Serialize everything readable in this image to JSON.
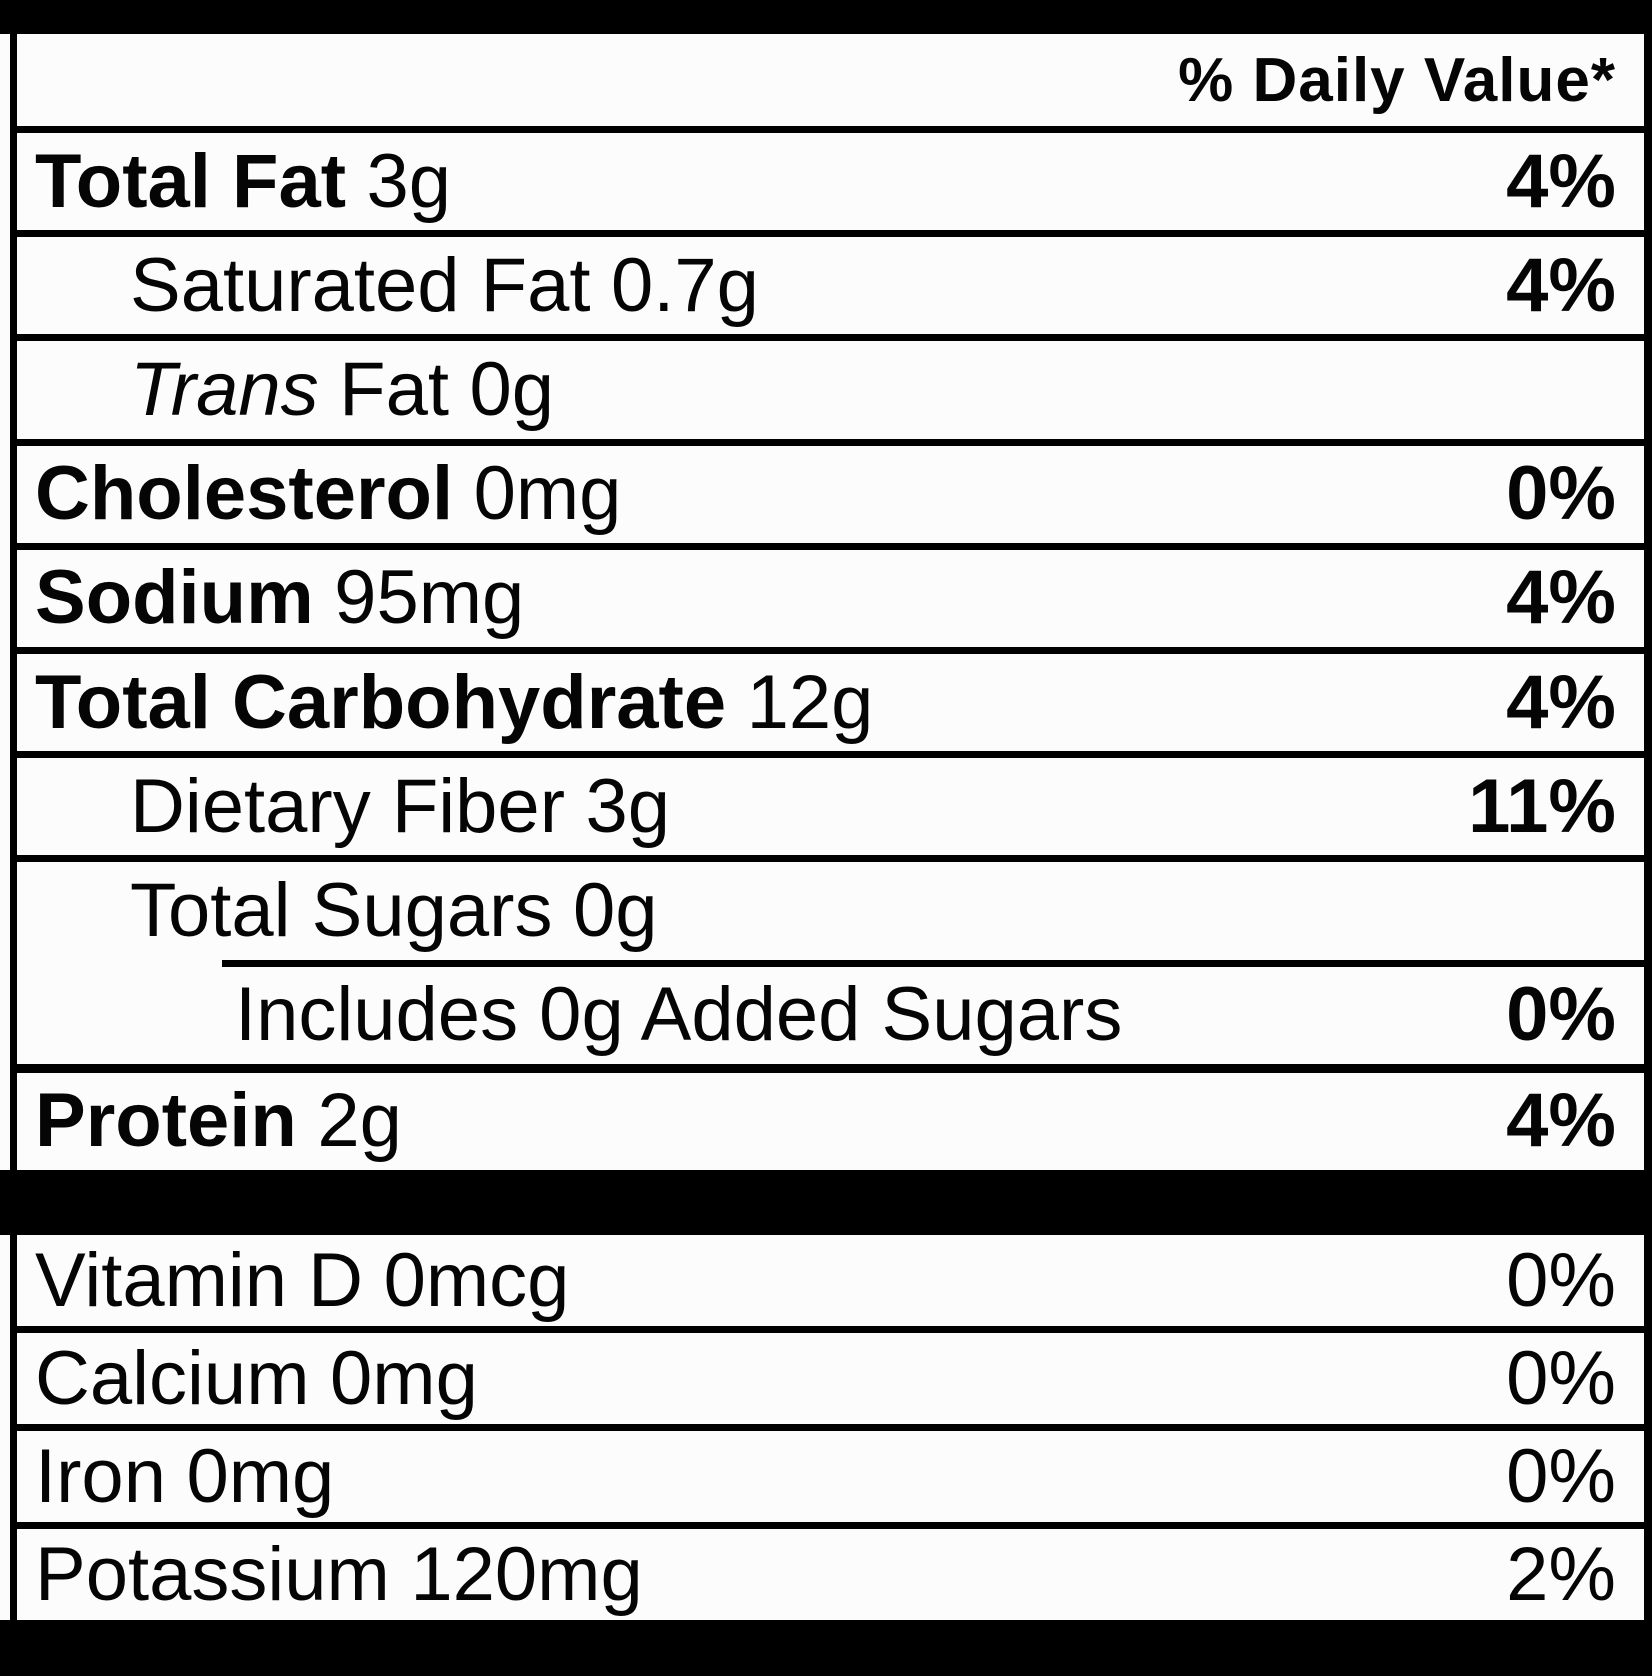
{
  "header": {
    "daily_value": "% Daily Value*"
  },
  "rows": [
    {
      "name": "Total Fat",
      "amount": "3g",
      "dv": "4%"
    },
    {
      "name": "Saturated Fat",
      "amount": "0.7g",
      "dv": "4%"
    },
    {
      "name_italic": "Trans",
      "name": "Fat",
      "amount": "0g",
      "dv": ""
    },
    {
      "name": "Cholesterol",
      "amount": "0mg",
      "dv": "0%"
    },
    {
      "name": "Sodium",
      "amount": "95mg",
      "dv": "4%"
    },
    {
      "name": "Total Carbohydrate",
      "amount": "12g",
      "dv": "4%"
    },
    {
      "name": "Dietary Fiber",
      "amount": "3g",
      "dv": "11%"
    },
    {
      "name": "Total Sugars",
      "amount": "0g",
      "dv": ""
    },
    {
      "name": "Includes 0g Added Sugars",
      "amount": "",
      "dv": "0%"
    },
    {
      "name": "Protein",
      "amount": "2g",
      "dv": "4%"
    }
  ],
  "micros": [
    {
      "name": "Vitamin D",
      "amount": "0mcg",
      "dv": "0%"
    },
    {
      "name": "Calcium",
      "amount": "0mg",
      "dv": "0%"
    },
    {
      "name": "Iron",
      "amount": "0mg",
      "dv": "0%"
    },
    {
      "name": "Potassium",
      "amount": "120mg",
      "dv": "2%"
    }
  ],
  "colors": {
    "page_background": "#000000",
    "label_background": "#fcfcfc",
    "text": "#050505",
    "rule": "#000000"
  }
}
